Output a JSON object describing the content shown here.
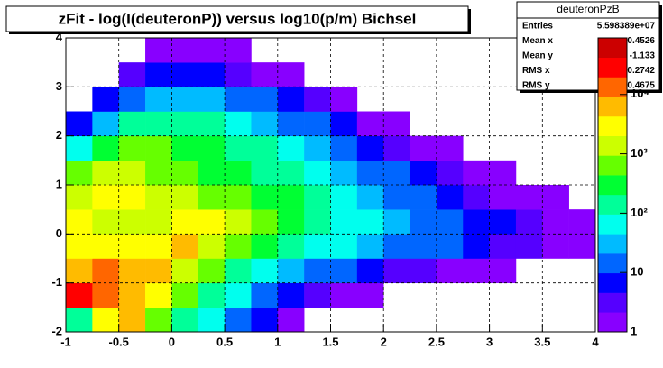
{
  "chart_data": {
    "type": "heatmap",
    "title": "zFit - log(I(deuteronP)) versus log10(p/m) Bichsel",
    "x_bins": [
      -1,
      -0.75,
      -0.5,
      -0.25,
      0,
      0.25,
      0.5,
      0.75,
      1,
      1.25,
      1.5,
      1.75,
      2,
      2.25,
      2.5,
      2.75,
      3,
      3.25,
      3.5,
      3.75,
      4
    ],
    "y_bins": [
      -2,
      -1.5,
      -1,
      -0.5,
      0,
      0.5,
      1,
      1.5,
      2,
      2.5,
      3,
      3.5,
      4
    ],
    "z": [
      [
        200,
        3000,
        5000,
        800,
        200,
        60,
        20,
        5,
        2,
        0,
        0,
        0,
        0,
        0,
        0,
        0,
        0,
        0,
        0,
        0
      ],
      [
        20000,
        15000,
        8000,
        3000,
        800,
        200,
        60,
        20,
        8,
        3,
        2,
        1,
        0,
        0,
        0,
        0,
        0,
        0,
        0,
        0
      ],
      [
        8000,
        10000,
        8000,
        6000,
        2000,
        500,
        200,
        80,
        40,
        20,
        10,
        6,
        4,
        3,
        2,
        1,
        1,
        0,
        0,
        0
      ],
      [
        3000,
        3000,
        2500,
        4000,
        5000,
        2000,
        800,
        300,
        150,
        80,
        50,
        30,
        20,
        15,
        10,
        6,
        4,
        3,
        2,
        1
      ],
      [
        3000,
        2000,
        1500,
        2000,
        3000,
        2500,
        1200,
        600,
        300,
        150,
        80,
        50,
        30,
        20,
        12,
        8,
        5,
        3,
        2,
        1
      ],
      [
        2000,
        3000,
        2500,
        1500,
        1000,
        800,
        600,
        400,
        250,
        120,
        70,
        40,
        20,
        12,
        8,
        4,
        2,
        1,
        1,
        0
      ],
      [
        500,
        1000,
        1200,
        900,
        600,
        400,
        300,
        200,
        120,
        70,
        40,
        20,
        10,
        5,
        3,
        1,
        1,
        0,
        0,
        0
      ],
      [
        80,
        300,
        500,
        500,
        400,
        250,
        150,
        100,
        60,
        30,
        15,
        8,
        4,
        2,
        1,
        0,
        0,
        0,
        0,
        0
      ],
      [
        5,
        40,
        100,
        150,
        150,
        100,
        60,
        40,
        20,
        10,
        5,
        2,
        1,
        0,
        0,
        0,
        0,
        0,
        0,
        0
      ],
      [
        0,
        5,
        15,
        30,
        40,
        30,
        20,
        10,
        5,
        3,
        1,
        0,
        0,
        0,
        0,
        0,
        0,
        0,
        0,
        0
      ],
      [
        0,
        0,
        3,
        5,
        8,
        6,
        4,
        2,
        1,
        0,
        0,
        0,
        0,
        0,
        0,
        0,
        0,
        0,
        0,
        0
      ],
      [
        0,
        0,
        0,
        1,
        2,
        1,
        1,
        0,
        0,
        0,
        0,
        0,
        0,
        0,
        0,
        0,
        0,
        0,
        0,
        0
      ]
    ],
    "xlim": [
      -1,
      4
    ],
    "ylim": [
      -2,
      4
    ],
    "xticks": [
      -1,
      -0.5,
      0,
      0.5,
      1,
      1.5,
      2,
      2.5,
      3,
      3.5,
      4
    ],
    "yticks": [
      -2,
      -1,
      0,
      1,
      2,
      3,
      4
    ],
    "zlim": [
      1,
      90000
    ],
    "zticks": [
      1,
      10,
      {
        "value": 100,
        "label": "10²"
      },
      {
        "value": 1000,
        "label": "10³"
      },
      {
        "value": 10000,
        "label": "10⁴"
      }
    ],
    "log_z": true,
    "grid": true,
    "palette": [
      "#8800ff",
      "#5500ff",
      "#0000ff",
      "#0066ff",
      "#00bbff",
      "#00ffee",
      "#00ff99",
      "#00ff33",
      "#66ff00",
      "#ccff00",
      "#ffff00",
      "#ffbb00",
      "#ff6600",
      "#ff0000",
      "#cc0000"
    ],
    "stats": {
      "title": "deuteronPzB",
      "rows": [
        [
          "Entries",
          "5.598389e+07"
        ],
        [
          "Mean x",
          "-0.4526"
        ],
        [
          "Mean y",
          "-1.133"
        ],
        [
          "RMS x",
          "0.2742"
        ],
        [
          "RMS y",
          "0.4675"
        ]
      ]
    }
  }
}
